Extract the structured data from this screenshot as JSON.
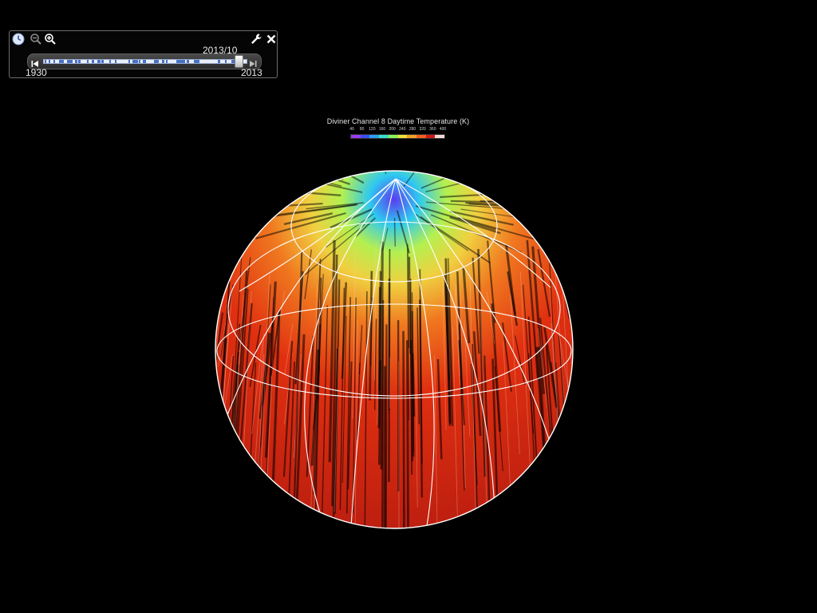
{
  "time_control": {
    "current_date": "2013/10",
    "start_year": "1930",
    "end_year": "2013",
    "position_fraction": 0.98,
    "icons": {
      "time": "clock-icon",
      "zoom_out": "zoom-out-icon",
      "zoom_in": "zoom-in-icon",
      "settings": "wrench-icon",
      "close": "close-icon",
      "skip_start": "skip-to-start-icon",
      "skip_end": "skip-to-end-icon"
    }
  },
  "legend": {
    "title": "Diviner Channel 8 Daytime Temperature (K)",
    "ticks": [
      "40",
      "80",
      "120",
      "160",
      "200",
      "240",
      "280",
      "320",
      "360",
      "400"
    ],
    "colors": [
      "#9b3cf0",
      "#3d4ef0",
      "#2aa0f0",
      "#36e0c8",
      "#8cf05a",
      "#f0e03a",
      "#f0a028",
      "#f06020",
      "#d01818",
      "#f4d8d8"
    ]
  },
  "globe": {
    "colors": {
      "pole_cold": "#5a3cf0",
      "cool": "#2ec8f0",
      "mild": "#b4f050",
      "warm": "#f0d040",
      "hot": "#f07820",
      "very_hot": "#e03010",
      "max": "#b81c10",
      "grid": "#ffffff"
    }
  }
}
